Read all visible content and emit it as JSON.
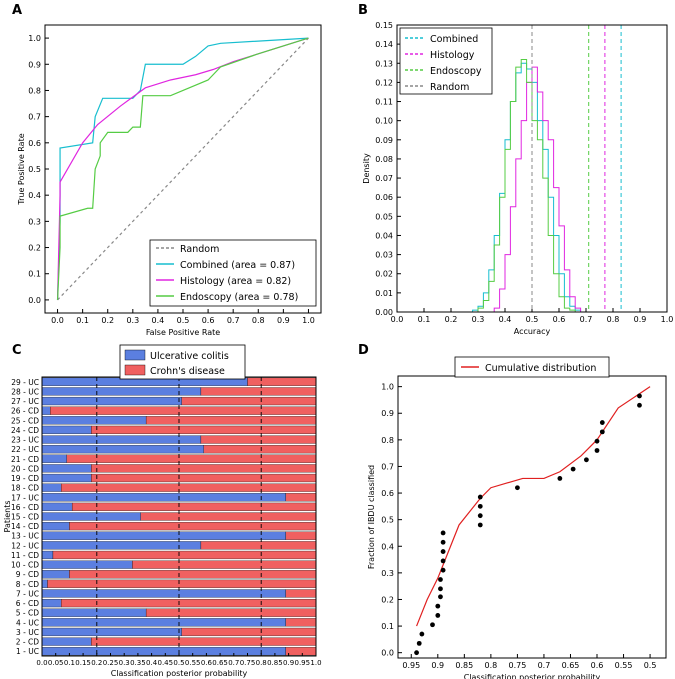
{
  "chart_data": [
    {
      "panel": "A",
      "type": "line",
      "xlabel": "False Positive Rate",
      "ylabel": "True Positive Rate",
      "xlim": [
        -0.05,
        1.05
      ],
      "ylim": [
        -0.05,
        1.05
      ],
      "xticks": [
        "0.0",
        "0.1",
        "0.2",
        "0.3",
        "0.4",
        "0.5",
        "0.6",
        "0.7",
        "0.8",
        "0.9",
        "1.0"
      ],
      "yticks": [
        "0.0",
        "0.1",
        "0.2",
        "0.3",
        "0.4",
        "0.5",
        "0.6",
        "0.7",
        "0.8",
        "0.9",
        "1.0"
      ],
      "legend": "bottom-right",
      "series": [
        {
          "name": "Random",
          "color": "#888888",
          "dash": true,
          "x": [
            0,
            1
          ],
          "y": [
            0,
            1
          ]
        },
        {
          "name": "Combined (area = 0.87)",
          "color": "#17becf",
          "x": [
            0,
            0.01,
            0.01,
            0.14,
            0.15,
            0.18,
            0.2,
            0.25,
            0.3,
            0.33,
            0.35,
            0.4,
            0.45,
            0.5,
            0.55,
            0.6,
            0.65,
            1.0
          ],
          "y": [
            0,
            0.3,
            0.58,
            0.6,
            0.7,
            0.77,
            0.77,
            0.77,
            0.77,
            0.8,
            0.9,
            0.9,
            0.9,
            0.9,
            0.93,
            0.97,
            0.98,
            1.0
          ]
        },
        {
          "name": "Histology (area = 0.82)",
          "color": "#e026e0",
          "x": [
            0,
            0.01,
            0.01,
            0.1,
            0.16,
            0.25,
            0.35,
            0.45,
            0.55,
            0.62,
            0.7,
            0.8,
            0.9,
            1.0
          ],
          "y": [
            0,
            0.4,
            0.45,
            0.6,
            0.67,
            0.74,
            0.81,
            0.84,
            0.86,
            0.88,
            0.91,
            0.94,
            0.97,
            1.0
          ]
        },
        {
          "name": "Endoscopy (area = 0.78)",
          "color": "#55cc44",
          "x": [
            0,
            0.01,
            0.01,
            0.12,
            0.14,
            0.15,
            0.17,
            0.17,
            0.2,
            0.28,
            0.3,
            0.33,
            0.34,
            0.45,
            0.5,
            0.6,
            0.65,
            0.8,
            1.0
          ],
          "y": [
            0,
            0.2,
            0.32,
            0.35,
            0.35,
            0.5,
            0.55,
            0.6,
            0.64,
            0.64,
            0.66,
            0.66,
            0.78,
            0.78,
            0.8,
            0.84,
            0.89,
            0.94,
            1.0
          ]
        }
      ]
    },
    {
      "panel": "B",
      "type": "area",
      "xlabel": "Accuracy",
      "ylabel": "Density",
      "xlim": [
        0.0,
        1.0
      ],
      "ylim": [
        0.0,
        0.15
      ],
      "xticks": [
        "0.0",
        "0.1",
        "0.2",
        "0.3",
        "0.4",
        "0.5",
        "0.6",
        "0.7",
        "0.8",
        "0.9",
        "1.0"
      ],
      "yticks": [
        "0.00",
        "0.01",
        "0.02",
        "0.03",
        "0.04",
        "0.05",
        "0.06",
        "0.07",
        "0.08",
        "0.09",
        "0.10",
        "0.11",
        "0.12",
        "0.13",
        "0.14",
        "0.15"
      ],
      "legend": "top-left",
      "bin_width": 0.02,
      "series": [
        {
          "name": "Combined",
          "color": "#17becf",
          "line": 0.83,
          "start": 0.28,
          "values": [
            0.001,
            0.003,
            0.01,
            0.022,
            0.04,
            0.062,
            0.09,
            0.11,
            0.125,
            0.13,
            0.127,
            0.12,
            0.1,
            0.085,
            0.06,
            0.04,
            0.02,
            0.008,
            0.003,
            0.001
          ]
        },
        {
          "name": "Histology",
          "color": "#e026e0",
          "line": 0.77,
          "start": 0.36,
          "values": [
            0.002,
            0.012,
            0.03,
            0.055,
            0.08,
            0.1,
            0.12,
            0.128,
            0.115,
            0.1,
            0.09,
            0.065,
            0.045,
            0.022,
            0.008,
            0.002
          ]
        },
        {
          "name": "Endoscopy",
          "color": "#55cc44",
          "line": 0.71,
          "start": 0.3,
          "values": [
            0.002,
            0.006,
            0.016,
            0.035,
            0.06,
            0.085,
            0.11,
            0.128,
            0.132,
            0.12,
            0.1,
            0.09,
            0.07,
            0.04,
            0.02,
            0.008,
            0.002,
            0.001
          ]
        },
        {
          "name": "Random",
          "color": "#888888",
          "line": 0.5
        }
      ]
    },
    {
      "panel": "C",
      "type": "bar",
      "orientation": "horizontal",
      "stacked": true,
      "xlabel": "Classification posterior probability",
      "ylabel": "Patients",
      "xlim": [
        0.0,
        1.0
      ],
      "xticks": [
        "0.0",
        "0.05",
        "0.1",
        "0.15",
        "0.2",
        "0.25",
        "0.3",
        "0.35",
        "0.4",
        "0.45",
        "0.5",
        "0.55",
        "0.6",
        "0.65",
        "0.7",
        "0.75",
        "0.8",
        "0.85",
        "0.9",
        "0.95",
        "1.0"
      ],
      "reference_lines": [
        0.2,
        0.5,
        0.8
      ],
      "legend": "top-center",
      "categories": [
        "1 - UC",
        "2 - CD",
        "3 - UC",
        "4 - UC",
        "5 - CD",
        "6 - CD",
        "7 - UC",
        "8 - CD",
        "9 - CD",
        "10 - CD",
        "11 - CD",
        "12 - UC",
        "13 - UC",
        "14 - CD",
        "15 - CD",
        "16 - CD",
        "17 - UC",
        "18 - CD",
        "19 - CD",
        "20 - CD",
        "21 - CD",
        "22 - UC",
        "23 - UC",
        "24 - CD",
        "25 - CD",
        "26 - CD",
        "27 - UC",
        "28 - UC",
        "29 - UC"
      ],
      "series": [
        {
          "name": "Ulcerative colitis",
          "color": "#5b7fe0",
          "values": [
            0.89,
            0.18,
            0.51,
            0.89,
            0.38,
            0.07,
            0.89,
            0.02,
            0.1,
            0.33,
            0.04,
            0.58,
            0.89,
            0.1,
            0.36,
            0.11,
            0.89,
            0.07,
            0.18,
            0.18,
            0.09,
            0.59,
            0.58,
            0.18,
            0.38,
            0.03,
            0.51,
            0.58,
            0.75
          ]
        },
        {
          "name": "Crohn's disease",
          "color": "#f06060",
          "values": [
            0.11,
            0.82,
            0.49,
            0.11,
            0.62,
            0.93,
            0.11,
            0.98,
            0.9,
            0.67,
            0.96,
            0.42,
            0.11,
            0.9,
            0.64,
            0.89,
            0.11,
            0.93,
            0.82,
            0.82,
            0.91,
            0.41,
            0.42,
            0.82,
            0.62,
            0.97,
            0.49,
            0.42,
            0.25
          ]
        }
      ]
    },
    {
      "panel": "D",
      "type": "scatter",
      "xlabel": "Classification posterior probability",
      "ylabel": "Fraction of IBDU classified",
      "xlim": [
        0.975,
        0.47
      ],
      "ylim": [
        -0.02,
        1.04
      ],
      "xticks": [
        "0.95",
        "0.9",
        "0.85",
        "0.8",
        "0.75",
        "0.7",
        "0.65",
        "0.6",
        "0.55",
        "0.5"
      ],
      "yticks": [
        "0.0",
        "0.1",
        "0.2",
        "0.3",
        "0.4",
        "0.5",
        "0.6",
        "0.7",
        "0.8",
        "0.9",
        "1.0"
      ],
      "legend": "top-center",
      "line": {
        "name": "Cumulative distribution",
        "color": "#e02020",
        "x": [
          0.94,
          0.92,
          0.9,
          0.89,
          0.86,
          0.82,
          0.8,
          0.74,
          0.7,
          0.67,
          0.63,
          0.6,
          0.56,
          0.5
        ],
        "y": [
          0.1,
          0.2,
          0.28,
          0.33,
          0.48,
          0.58,
          0.62,
          0.655,
          0.655,
          0.68,
          0.74,
          0.8,
          0.92,
          1.0
        ]
      },
      "points": {
        "x": [
          0.94,
          0.935,
          0.93,
          0.91,
          0.9,
          0.9,
          0.895,
          0.895,
          0.895,
          0.89,
          0.89,
          0.89,
          0.89,
          0.89,
          0.82,
          0.82,
          0.82,
          0.82,
          0.75,
          0.67,
          0.645,
          0.62,
          0.6,
          0.6,
          0.59,
          0.59,
          0.52,
          0.52
        ],
        "y": [
          0.0,
          0.035,
          0.07,
          0.105,
          0.14,
          0.175,
          0.21,
          0.24,
          0.275,
          0.31,
          0.345,
          0.38,
          0.415,
          0.45,
          0.48,
          0.515,
          0.55,
          0.585,
          0.62,
          0.655,
          0.69,
          0.725,
          0.76,
          0.795,
          0.83,
          0.865,
          0.93,
          0.965
        ]
      }
    }
  ],
  "panel_labels": [
    "A",
    "B",
    "C",
    "D"
  ]
}
